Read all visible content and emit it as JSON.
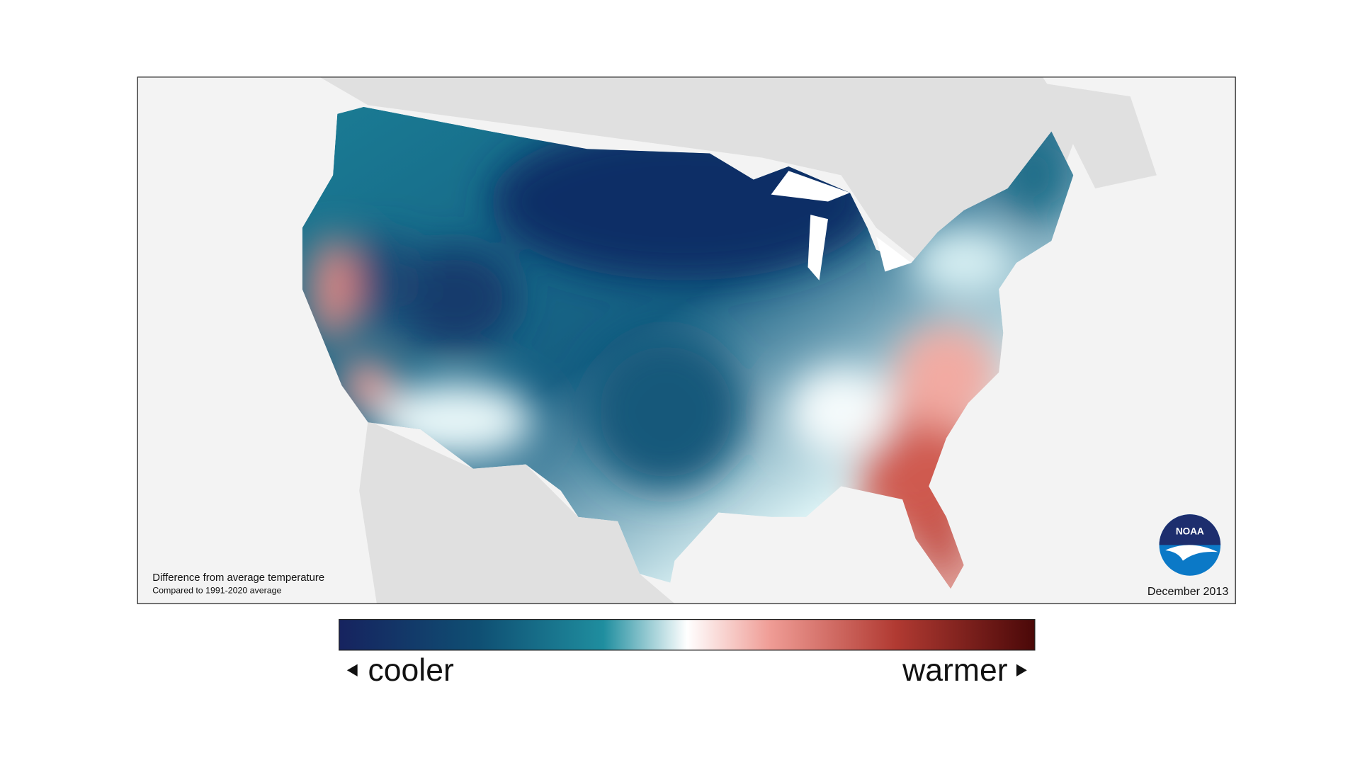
{
  "map": {
    "caption": "Difference from average temperature",
    "subcaption": "Compared to 1991-2020 average",
    "date": "December 2013"
  },
  "logo": {
    "text": "NOAA"
  },
  "legend": {
    "low_label": "cooler",
    "high_label": "warmer"
  }
}
